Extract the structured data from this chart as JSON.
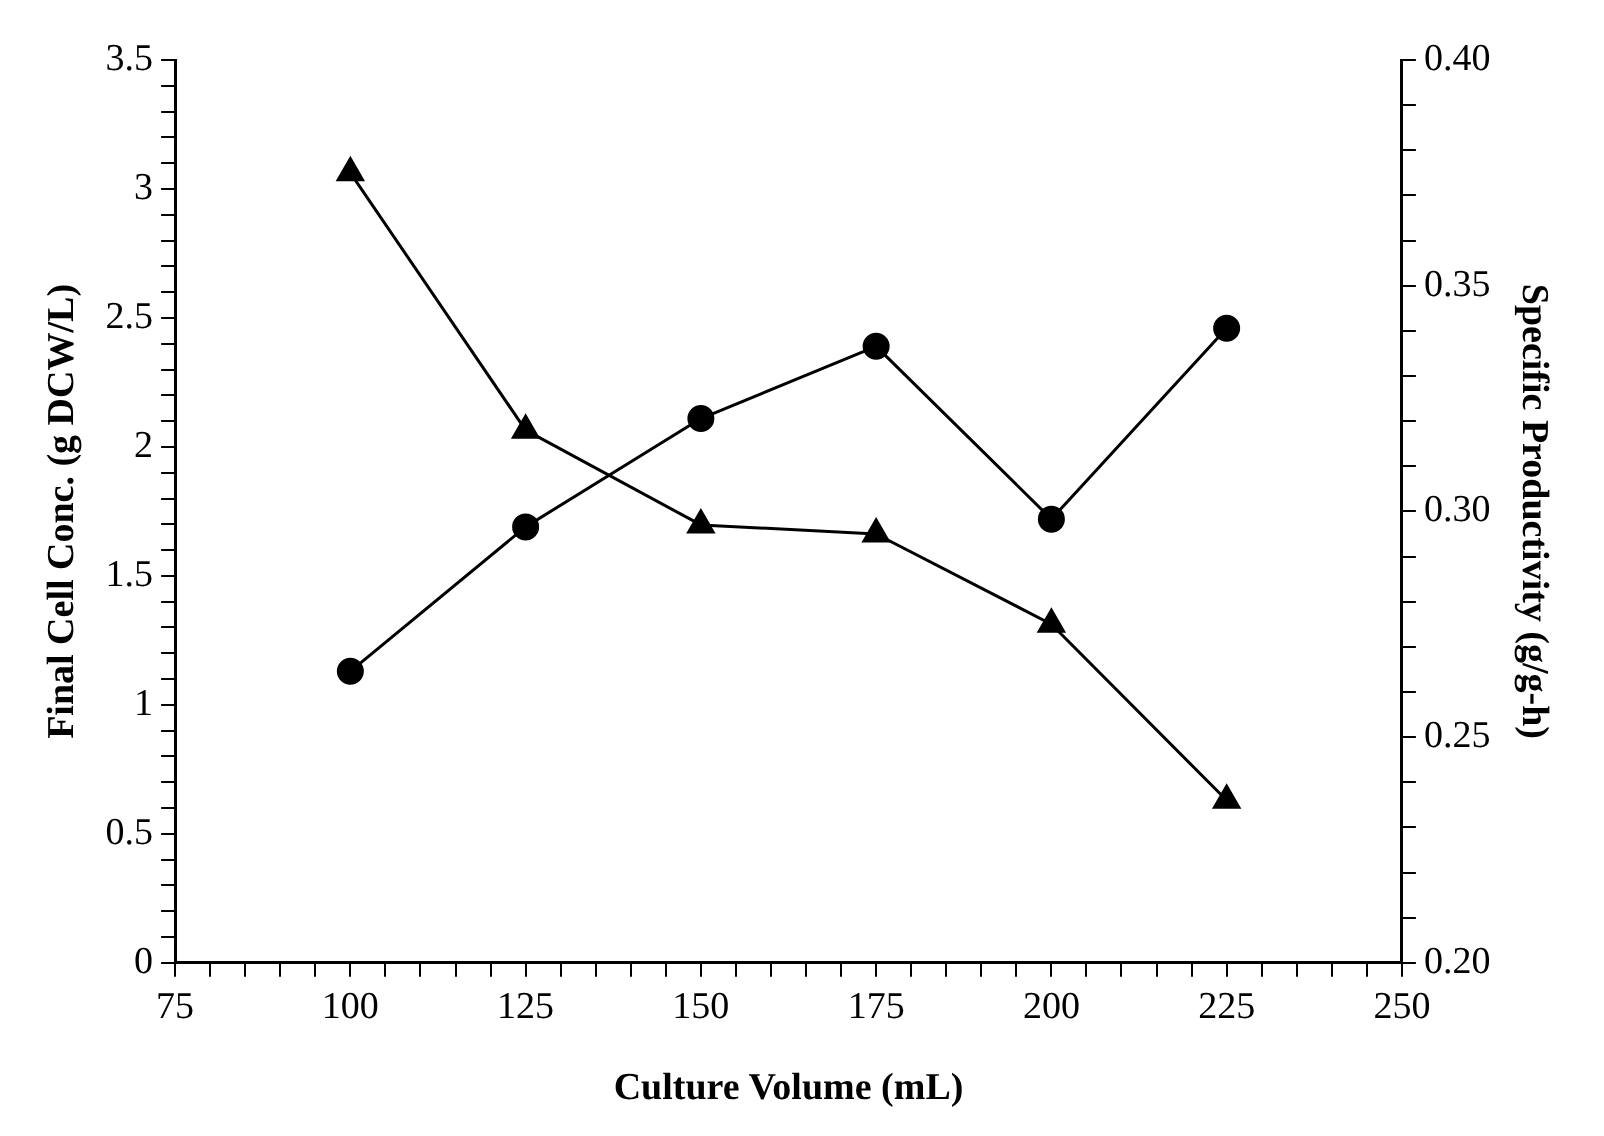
{
  "chart_data": {
    "type": "line",
    "xlabel": "Culture Volume (mL)",
    "ylabel": "Final Cell Conc. (g DCW/L)",
    "y2label": "Specific Productivity (g/g-h)",
    "x": [
      100,
      125,
      150,
      175,
      200,
      225
    ],
    "series": [
      {
        "color": "#000000",
        "marker": "circle",
        "values": [
          1.13,
          1.69,
          2.11,
          2.39,
          1.72,
          2.46
        ]
      },
      {
        "color": "#000000",
        "marker": "triangle",
        "axis": "y2",
        "values": [
          0.375,
          0.318,
          0.297,
          0.295,
          0.275,
          0.236
        ]
      }
    ],
    "xlim": [
      75,
      250
    ],
    "ylim": [
      0,
      3.5
    ],
    "y2lim": [
      0.2,
      0.4
    ],
    "xticks": [
      75,
      {
        "value": 80,
        "label": null
      },
      {
        "value": 85,
        "label": null
      },
      {
        "value": 90,
        "label": null
      },
      {
        "value": 95,
        "label": null
      },
      100,
      {
        "value": 105,
        "label": null
      },
      {
        "value": 110,
        "label": null
      },
      {
        "value": 115,
        "label": null
      },
      {
        "value": 120,
        "label": null
      },
      125,
      {
        "value": 130,
        "label": null
      },
      {
        "value": 135,
        "label": null
      },
      {
        "value": 140,
        "label": null
      },
      {
        "value": 145,
        "label": null
      },
      150,
      {
        "value": 155,
        "label": null
      },
      {
        "value": 160,
        "label": null
      },
      {
        "value": 165,
        "label": null
      },
      {
        "value": 170,
        "label": null
      },
      175,
      {
        "value": 180,
        "label": null
      },
      {
        "value": 185,
        "label": null
      },
      {
        "value": 190,
        "label": null
      },
      {
        "value": 195,
        "label": null
      },
      200,
      {
        "value": 205,
        "label": null
      },
      {
        "value": 210,
        "label": null
      },
      {
        "value": 215,
        "label": null
      },
      {
        "value": 220,
        "label": null
      },
      225,
      {
        "value": 230,
        "label": null
      },
      {
        "value": 235,
        "label": null
      },
      {
        "value": 240,
        "label": null
      },
      {
        "value": 245,
        "label": null
      },
      250
    ],
    "yticks": [
      0,
      {
        "value": 0.1,
        "label": null
      },
      {
        "value": 0.2,
        "label": null
      },
      {
        "value": 0.3,
        "label": null
      },
      {
        "value": 0.4,
        "label": null
      },
      0.5,
      {
        "value": 0.6,
        "label": null
      },
      {
        "value": 0.7,
        "label": null
      },
      {
        "value": 0.8,
        "label": null
      },
      {
        "value": 0.9,
        "label": null
      },
      1,
      {
        "value": 1.1,
        "label": null
      },
      {
        "value": 1.2,
        "label": null
      },
      {
        "value": 1.3,
        "label": null
      },
      {
        "value": 1.4,
        "label": null
      },
      1.5,
      {
        "value": 1.6,
        "label": null
      },
      {
        "value": 1.7,
        "label": null
      },
      {
        "value": 1.8,
        "label": null
      },
      {
        "value": 1.9,
        "label": null
      },
      2,
      {
        "value": 2.1,
        "label": null
      },
      {
        "value": 2.2,
        "label": null
      },
      {
        "value": 2.3,
        "label": null
      },
      {
        "value": 2.4,
        "label": null
      },
      2.5,
      {
        "value": 2.6,
        "label": null
      },
      {
        "value": 2.7,
        "label": null
      },
      {
        "value": 2.8,
        "label": null
      },
      {
        "value": 2.9,
        "label": null
      },
      3,
      {
        "value": 3.1,
        "label": null
      },
      {
        "value": 3.2,
        "label": null
      },
      {
        "value": 3.3,
        "label": null
      },
      {
        "value": 3.4,
        "label": null
      },
      3.5
    ],
    "y2ticks": [
      {
        "value": 0.2,
        "label": "0.20"
      },
      {
        "value": 0.21,
        "label": null
      },
      {
        "value": 0.22,
        "label": null
      },
      {
        "value": 0.23,
        "label": null
      },
      {
        "value": 0.24,
        "label": null
      },
      {
        "value": 0.25,
        "label": "0.25"
      },
      {
        "value": 0.26,
        "label": null
      },
      {
        "value": 0.27,
        "label": null
      },
      {
        "value": 0.28,
        "label": null
      },
      {
        "value": 0.29,
        "label": null
      },
      {
        "value": 0.3,
        "label": "0.30"
      },
      {
        "value": 0.31,
        "label": null
      },
      {
        "value": 0.32,
        "label": null
      },
      {
        "value": 0.33,
        "label": null
      },
      {
        "value": 0.34,
        "label": null
      },
      {
        "value": 0.35,
        "label": "0.35"
      },
      {
        "value": 0.36,
        "label": null
      },
      {
        "value": 0.37,
        "label": null
      },
      {
        "value": 0.38,
        "label": null
      },
      {
        "value": 0.39,
        "label": null
      },
      {
        "value": 0.4,
        "label": "0.40"
      }
    ],
    "line_style": "solid",
    "grid": false,
    "legend": false
  }
}
